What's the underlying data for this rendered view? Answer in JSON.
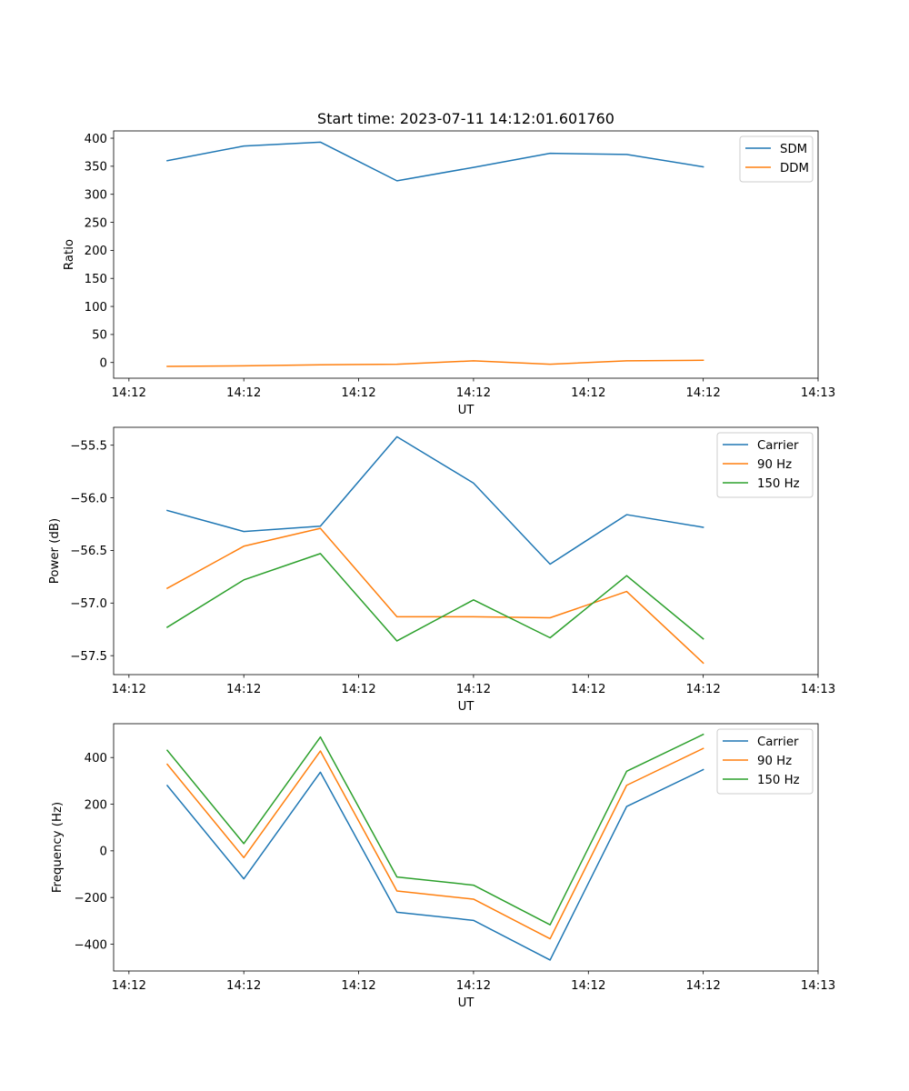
{
  "figure_title": "Start time: 2023-07-11 14:12:01.601760",
  "colors": {
    "blue": "#1f77b4",
    "orange": "#ff7f0e",
    "green": "#2ca02c"
  },
  "chart_data": [
    {
      "type": "line",
      "title": "Start time: 2023-07-11 14:12:01.601760",
      "xlabel": "UT",
      "ylabel": "Ratio",
      "xlim": [
        -0.7,
        8.5
      ],
      "ylim": [
        -28,
        413
      ],
      "x": [
        0,
        1,
        2,
        3,
        4,
        5,
        6,
        7
      ],
      "xticks": [
        -0.5,
        1,
        2.5,
        4,
        5.5,
        7,
        8.5
      ],
      "xtick_labels": [
        "14:12",
        "14:12",
        "14:12",
        "14:12",
        "14:12",
        "14:12",
        "14:13"
      ],
      "yticks": [
        0,
        50,
        100,
        150,
        200,
        250,
        300,
        350,
        400
      ],
      "ytick_labels": [
        "0",
        "50",
        "100",
        "150",
        "200",
        "250",
        "300",
        "350",
        "400"
      ],
      "legend_position": "top-right",
      "series": [
        {
          "name": "SDM",
          "color": "#1f77b4",
          "values": [
            360,
            386,
            393,
            324,
            348,
            373,
            371,
            349
          ]
        },
        {
          "name": "DDM",
          "color": "#ff7f0e",
          "values": [
            -7,
            -6,
            -4,
            -3,
            3,
            -3,
            3,
            4
          ]
        }
      ]
    },
    {
      "type": "line",
      "title": "",
      "xlabel": "UT",
      "ylabel": "Power (dB)",
      "xlim": [
        -0.7,
        8.5
      ],
      "ylim": [
        -57.68,
        -55.33
      ],
      "x": [
        0,
        1,
        2,
        3,
        4,
        5,
        6,
        7
      ],
      "xticks": [
        -0.5,
        1,
        2.5,
        4,
        5.5,
        7,
        8.5
      ],
      "xtick_labels": [
        "14:12",
        "14:12",
        "14:12",
        "14:12",
        "14:12",
        "14:12",
        "14:13"
      ],
      "yticks": [
        -57.5,
        -57.0,
        -56.5,
        -56.0,
        -55.5
      ],
      "ytick_labels": [
        "−57.5",
        "−57.0",
        "−56.5",
        "−56.0",
        "−55.5"
      ],
      "legend_position": "top-right",
      "series": [
        {
          "name": "Carrier",
          "color": "#1f77b4",
          "values": [
            -56.12,
            -56.32,
            -56.27,
            -55.42,
            -55.86,
            -56.63,
            -56.16,
            -56.28
          ]
        },
        {
          "name": "90 Hz",
          "color": "#ff7f0e",
          "values": [
            -56.86,
            -56.46,
            -56.29,
            -57.13,
            -57.13,
            -57.14,
            -56.89,
            -57.57
          ]
        },
        {
          "name": "150 Hz",
          "color": "#2ca02c",
          "values": [
            -57.23,
            -56.78,
            -56.53,
            -57.36,
            -56.97,
            -57.33,
            -56.74,
            -57.34
          ]
        }
      ]
    },
    {
      "type": "line",
      "title": "",
      "xlabel": "UT",
      "ylabel": "Frequency (Hz)",
      "xlim": [
        -0.7,
        8.5
      ],
      "ylim": [
        -515,
        545
      ],
      "x": [
        0,
        1,
        2,
        3,
        4,
        5,
        6,
        7
      ],
      "xticks": [
        -0.5,
        1,
        2.5,
        4,
        5.5,
        7,
        8.5
      ],
      "xtick_labels": [
        "14:12",
        "14:12",
        "14:12",
        "14:12",
        "14:12",
        "14:12",
        "14:13"
      ],
      "yticks": [
        -400,
        -200,
        0,
        200,
        400
      ],
      "ytick_labels": [
        "−400",
        "−200",
        "0",
        "200",
        "400"
      ],
      "legend_position": "top-right",
      "series": [
        {
          "name": "Carrier",
          "color": "#1f77b4",
          "values": [
            280,
            -120,
            337,
            -263,
            -298,
            -468,
            190,
            348
          ]
        },
        {
          "name": "90 Hz",
          "color": "#ff7f0e",
          "values": [
            371,
            -29,
            428,
            -172,
            -207,
            -377,
            281,
            439
          ]
        },
        {
          "name": "150 Hz",
          "color": "#2ca02c",
          "values": [
            431,
            31,
            488,
            -112,
            -147,
            -317,
            341,
            499
          ]
        }
      ]
    }
  ]
}
